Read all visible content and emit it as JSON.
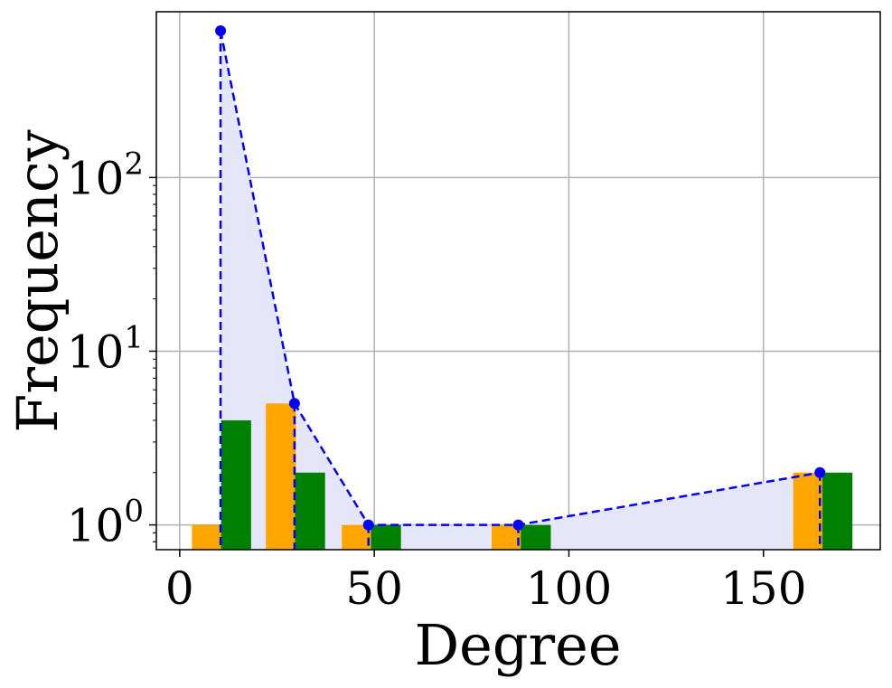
{
  "chart_data": {
    "type": "bar",
    "xlabel": "Degree",
    "ylabel": "Frequency",
    "xlim": [
      -6,
      180
    ],
    "ylim": [
      0.72,
      900
    ],
    "yscale": "log",
    "grid": true,
    "xticks": [
      0,
      50,
      100,
      150
    ],
    "xtick_labels": [
      "0",
      "50",
      "100",
      "150"
    ],
    "yticks": [
      1,
      10,
      100
    ],
    "ytick_labels": [
      {
        "base": "10",
        "exp": "0"
      },
      {
        "base": "10",
        "exp": "1"
      },
      {
        "base": "10",
        "exp": "2"
      }
    ],
    "colors": {
      "series_a": "#ffa500",
      "series_b": "#008000",
      "line": "#0000ff",
      "fill": "#e6e6fa",
      "grid": "#b0b0b0"
    },
    "bar_width": 7.7,
    "series": [
      {
        "color": "#ffa500",
        "x": [
          7,
          26,
          45.5,
          84,
          161.5
        ],
        "values": [
          1,
          5,
          1,
          1,
          2
        ]
      },
      {
        "color": "#008000",
        "x": [
          14.5,
          33.5,
          53,
          91.5,
          169
        ],
        "values": [
          4,
          2,
          1,
          1,
          2
        ]
      }
    ],
    "line_series": {
      "style": "dashed",
      "marker": "circle",
      "x": [
        10.5,
        29.5,
        48.5,
        87,
        164.5
      ],
      "values": [
        700,
        5,
        1,
        1,
        2
      ]
    }
  }
}
